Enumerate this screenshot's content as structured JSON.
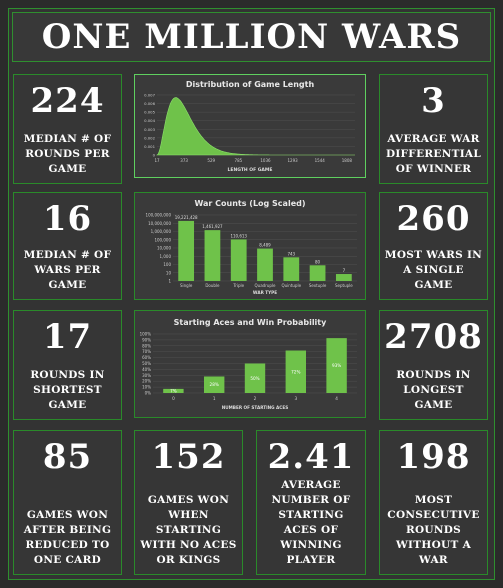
{
  "header": {
    "title": "ONE MILLION WARS"
  },
  "stats": [
    {
      "value": "224",
      "label": "MEDIAN # OF ROUNDS PER GAME"
    },
    {
      "value": "3",
      "label": "AVERAGE WAR DIFFERENTIAL OF WINNER"
    },
    {
      "value": "16",
      "label": "MEDIAN # OF WARS PER GAME"
    },
    {
      "value": "260",
      "label": "MOST WARS IN A SINGLE GAME"
    },
    {
      "value": "17",
      "label": "ROUNDS IN SHORTEST GAME"
    },
    {
      "value": "2708",
      "label": "ROUNDS IN LONGEST GAME"
    },
    {
      "value": "85",
      "label": "GAMES WON AFTER BEING REDUCED TO ONE CARD"
    },
    {
      "value": "152",
      "label": "GAMES WON WHEN STARTING WITH NO ACES OR KINGS"
    },
    {
      "value": "2.41",
      "label": "AVERAGE NUMBER OF STARTING ACES OF WINNING PLAYER"
    },
    {
      "value": "198",
      "label": "MOST CONSECUTIVE ROUNDS WITHOUT A WAR"
    }
  ],
  "chart_data": [
    {
      "type": "area",
      "title": "Distribution of Game Length",
      "xlabel": "LENGTH OF GAME",
      "ylabel": "",
      "x_ticks": [
        "17",
        "373",
        "529",
        "785",
        "1036",
        "1293",
        "1544",
        "1808"
      ],
      "y_ticks": [
        "0",
        "0.001",
        "0.002",
        "0.003",
        "0.004",
        "0.005",
        "0.006",
        "0.007"
      ],
      "xlim": [
        17,
        1950
      ],
      "ylim": [
        0,
        0.007
      ],
      "peak_x": 200,
      "peak_y": 0.0067,
      "series_color": "#6fc24a"
    },
    {
      "type": "bar",
      "title": "War Counts (Log Scaled)",
      "xlabel": "WAR TYPE",
      "ylabel": "",
      "scale": "log",
      "categories": [
        "Single",
        "Double",
        "Triple",
        "Quadruple",
        "Quintuple",
        "Sextuple",
        "Septuple"
      ],
      "values": [
        19221428,
        1461927,
        110613,
        8489,
        743,
        80,
        7
      ],
      "labels": [
        "19,221,428",
        "1,461,927",
        "110,613",
        "8,489",
        "743",
        "80",
        "7"
      ],
      "y_ticks": [
        "100,000,000",
        "10,000,000",
        "1,000,000",
        "100,000",
        "10,000",
        "1,000",
        "100",
        "10",
        "1"
      ],
      "ylim": [
        1,
        100000000
      ],
      "series_color": "#6fc24a"
    },
    {
      "type": "bar",
      "title": "Starting Aces and Win Probability",
      "xlabel": "NUMBER OF STARTING ACES",
      "ylabel": "",
      "categories": [
        "0",
        "1",
        "2",
        "3",
        "4"
      ],
      "values": [
        7,
        28,
        50,
        72,
        93
      ],
      "labels": [
        "7%",
        "28%",
        "50%",
        "72%",
        "93%"
      ],
      "y_ticks": [
        "0%",
        "10%",
        "20%",
        "30%",
        "40%",
        "50%",
        "60%",
        "70%",
        "80%",
        "90%",
        "100%"
      ],
      "ylim": [
        0,
        100
      ],
      "series_color": "#6fc24a"
    }
  ]
}
